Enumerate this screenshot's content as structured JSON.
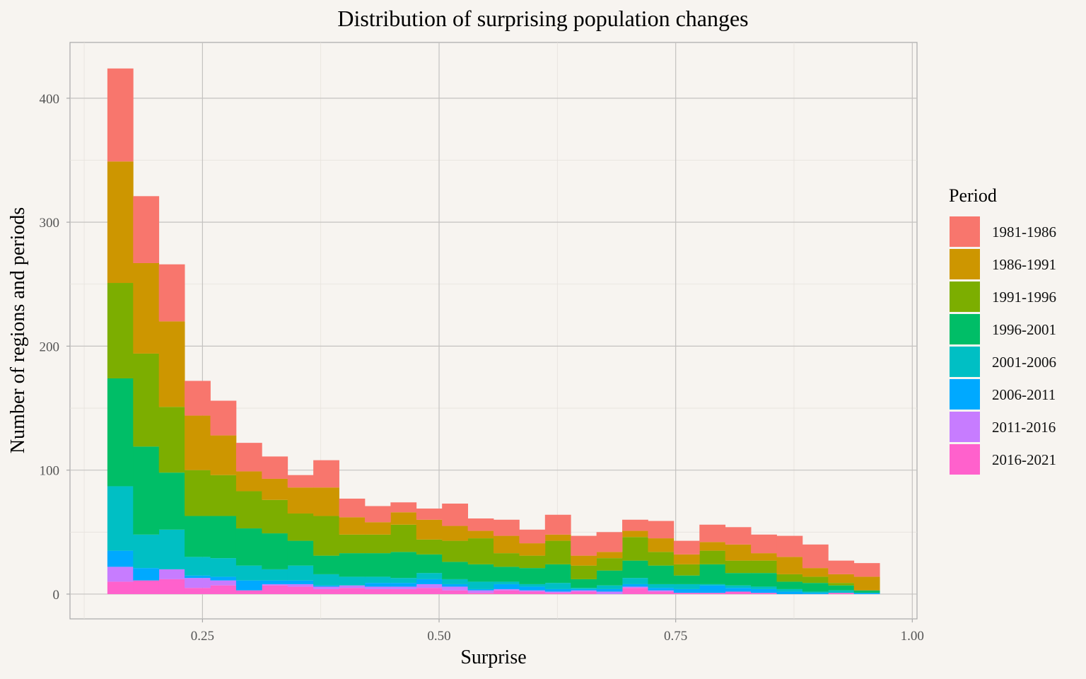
{
  "chart_data": {
    "type": "bar",
    "stacked": true,
    "title": "Distribution of surprising population changes",
    "xlabel": "Surprise",
    "ylabel": "Number of regions and periods",
    "xlim": [
      0.11,
      1.005
    ],
    "ylim": [
      -20,
      445
    ],
    "x_ticks": [
      0.25,
      0.5,
      0.75,
      1.0
    ],
    "x_tick_labels": [
      "0.25",
      "0.50",
      "0.75",
      "1.00"
    ],
    "y_ticks": [
      0,
      100,
      200,
      300,
      400
    ],
    "y_tick_labels": [
      "0",
      "100",
      "200",
      "300",
      "400"
    ],
    "grid": true,
    "legend": {
      "title": "Period",
      "position": "right"
    },
    "bin_width": 0.0272,
    "bin_starts": [
      0.1495,
      0.1767,
      0.2039,
      0.2311,
      0.2583,
      0.2855,
      0.3127,
      0.3399,
      0.3671,
      0.3943,
      0.4215,
      0.4487,
      0.4759,
      0.5031,
      0.5303,
      0.5575,
      0.5847,
      0.6119,
      0.6391,
      0.6663,
      0.6935,
      0.7207,
      0.7479,
      0.7751,
      0.8023,
      0.8295,
      0.8567,
      0.8839,
      0.9111,
      0.9383
    ],
    "series": [
      {
        "name": "2016-2021",
        "color": "#FF61CC",
        "values": [
          10,
          11,
          12,
          5,
          7,
          3,
          7,
          6,
          4,
          5,
          4,
          4,
          5,
          3,
          1,
          3,
          2,
          1,
          2,
          0,
          5,
          2,
          1,
          1,
          2,
          1,
          0,
          0,
          1,
          0
        ]
      },
      {
        "name": "2011-2016",
        "color": "#C77CFF",
        "values": [
          12,
          0,
          8,
          8,
          4,
          0,
          1,
          2,
          2,
          2,
          2,
          2,
          3,
          3,
          2,
          1,
          1,
          1,
          1,
          2,
          1,
          1,
          0,
          0,
          0,
          0,
          0,
          0,
          0,
          0
        ]
      },
      {
        "name": "2006-2011",
        "color": "#00A9FF",
        "values": [
          13,
          10,
          0,
          2,
          3,
          8,
          3,
          3,
          1,
          0,
          3,
          3,
          4,
          2,
          1,
          4,
          3,
          2,
          1,
          2,
          2,
          2,
          3,
          6,
          3,
          3,
          2,
          1,
          0,
          1
        ]
      },
      {
        "name": "2001-2006",
        "color": "#00BFC4",
        "values": [
          52,
          27,
          32,
          15,
          15,
          12,
          9,
          12,
          9,
          7,
          5,
          4,
          5,
          4,
          6,
          2,
          2,
          5,
          1,
          3,
          5,
          3,
          4,
          1,
          2,
          2,
          2,
          1,
          2,
          0
        ]
      },
      {
        "name": "1996-2001",
        "color": "#00BE67",
        "values": [
          87,
          71,
          46,
          33,
          34,
          30,
          29,
          20,
          15,
          19,
          19,
          21,
          15,
          14,
          14,
          12,
          13,
          15,
          7,
          12,
          14,
          15,
          7,
          16,
          10,
          11,
          6,
          7,
          4,
          2
        ]
      },
      {
        "name": "1991-1996",
        "color": "#7CAE00",
        "values": [
          77,
          75,
          53,
          37,
          33,
          30,
          27,
          22,
          32,
          15,
          15,
          22,
          12,
          17,
          21,
          11,
          10,
          19,
          11,
          10,
          19,
          11,
          9,
          11,
          10,
          10,
          6,
          5,
          2,
          0
        ]
      },
      {
        "name": "1986-1991",
        "color": "#CD9600",
        "values": [
          98,
          73,
          69,
          44,
          32,
          16,
          17,
          21,
          23,
          14,
          10,
          10,
          16,
          12,
          6,
          14,
          10,
          5,
          8,
          5,
          5,
          11,
          8,
          7,
          13,
          6,
          14,
          7,
          7,
          11
        ]
      },
      {
        "name": "1981-1986",
        "color": "#F8766D",
        "values": [
          75,
          54,
          46,
          28,
          28,
          23,
          18,
          10,
          22,
          15,
          13,
          8,
          9,
          18,
          10,
          13,
          11,
          16,
          16,
          16,
          9,
          14,
          11,
          14,
          14,
          15,
          17,
          19,
          11,
          11
        ]
      }
    ]
  }
}
